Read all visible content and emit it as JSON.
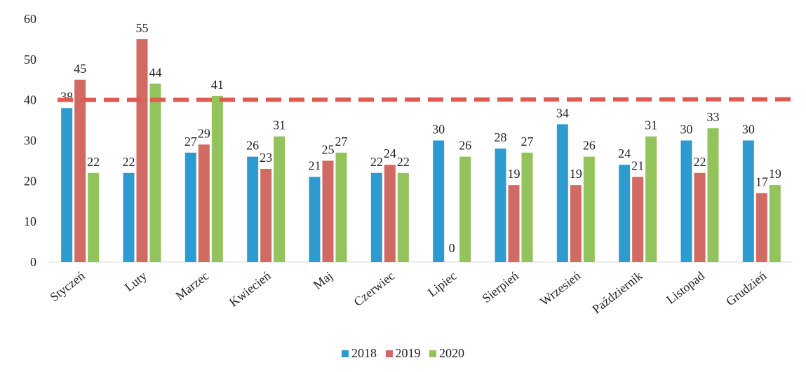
{
  "chart_data": {
    "type": "bar",
    "categories": [
      "Styczeń",
      "Luty",
      "Marzec",
      "Kwiecień",
      "Maj",
      "Czerwiec",
      "Lipiec",
      "Sierpień",
      "Wrzesień",
      "Październik",
      "Listopad",
      "Grudzień"
    ],
    "series": [
      {
        "name": "2018",
        "color": "#2e9bd0",
        "values": [
          38,
          22,
          27,
          26,
          21,
          22,
          30,
          28,
          34,
          24,
          30,
          30
        ]
      },
      {
        "name": "2019",
        "color": "#d26a64",
        "values": [
          45,
          55,
          29,
          23,
          25,
          24,
          0,
          19,
          19,
          21,
          22,
          17
        ]
      },
      {
        "name": "2020",
        "color": "#93c35b",
        "values": [
          22,
          44,
          41,
          31,
          27,
          22,
          26,
          27,
          26,
          31,
          33,
          19
        ]
      }
    ],
    "yticks": [
      0,
      10,
      20,
      30,
      40,
      50,
      60
    ],
    "ylim": [
      0,
      60
    ],
    "reference_line": {
      "value": 40,
      "color": "#e05a52",
      "style": "dashed"
    },
    "legend": {
      "position": "bottom"
    },
    "title": "",
    "xlabel": "",
    "ylabel": ""
  }
}
